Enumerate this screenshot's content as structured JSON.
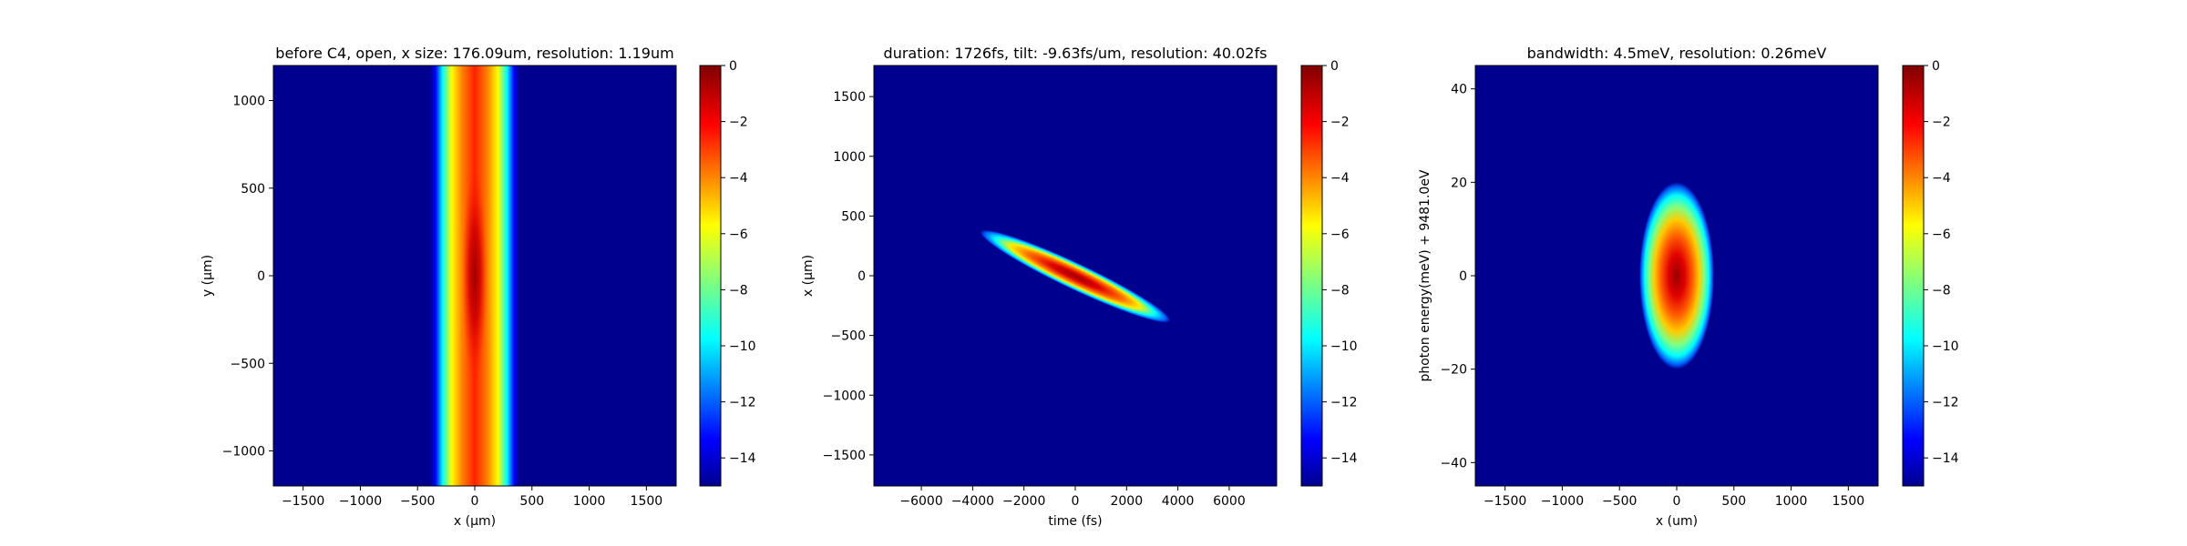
{
  "chart_data": [
    {
      "type": "heatmap",
      "title": "before C4, open, x size: 176.09um, resolution: 1.19um",
      "xlabel": "x (μm)",
      "ylabel": "y (μm)",
      "xlim": [
        -1760,
        1760
      ],
      "ylim": [
        -1200,
        1200
      ],
      "x_ticks": [
        -1500,
        -1000,
        -500,
        0,
        500,
        1000,
        1500
      ],
      "y_ticks": [
        -1000,
        -500,
        0,
        500,
        1000
      ],
      "x_tick_labels": [
        "−1500",
        "−1000",
        "−500",
        "0",
        "500",
        "1000",
        "1500"
      ],
      "y_tick_labels": [
        "−1000",
        "−500",
        "0",
        "500",
        "1000"
      ],
      "colormap": "jet",
      "clim": [
        -15,
        0
      ],
      "colorbar_ticks": [
        0,
        -2,
        -4,
        -6,
        -8,
        -10,
        -12,
        -14
      ],
      "colorbar_tick_labels": [
        "0",
        "−2",
        "−4",
        "−6",
        "−8",
        "−10",
        "−12",
        "−14"
      ],
      "feature": {
        "shape": "vertical-beam",
        "center_x": 0,
        "center_y": 0,
        "half_width_x_at_floor": 330,
        "edge_half_width_x_at_floor": 390,
        "core_half_height_y": 600
      }
    },
    {
      "type": "heatmap",
      "title": "duration: 1726fs, tilt: -9.63fs/um, resolution: 40.02fs",
      "xlabel": "time (fs)",
      "ylabel": "x (μm)",
      "xlim": [
        -7850,
        7850
      ],
      "ylim": [
        -1760,
        1760
      ],
      "x_ticks": [
        -6000,
        -4000,
        -2000,
        0,
        2000,
        4000,
        6000
      ],
      "y_ticks": [
        -1500,
        -1000,
        -500,
        0,
        500,
        1000,
        1500
      ],
      "x_tick_labels": [
        "−6000",
        "−4000",
        "−2000",
        "0",
        "2000",
        "4000",
        "6000"
      ],
      "y_tick_labels": [
        "−1500",
        "−1000",
        "−500",
        "0",
        "500",
        "1000",
        "1500"
      ],
      "colormap": "jet",
      "clim": [
        -15,
        0
      ],
      "colorbar_ticks": [
        0,
        -2,
        -4,
        -6,
        -8,
        -10,
        -12,
        -14
      ],
      "colorbar_tick_labels": [
        "0",
        "−2",
        "−4",
        "−6",
        "−8",
        "−10",
        "−12",
        "−14"
      ],
      "feature": {
        "shape": "tilted-ellipse",
        "center_x": 0,
        "center_y": 0,
        "tilt_fs_per_um": -9.63,
        "endpoint_start": [
          -3700,
          370
        ],
        "endpoint_end": [
          3700,
          -380
        ],
        "half_thickness_x_at_floor": 22
      }
    },
    {
      "type": "heatmap",
      "title": "bandwidth: 4.5meV, resolution: 0.26meV",
      "xlabel": "x (um)",
      "ylabel": "photon energy(meV) + 9481.0eV",
      "xlim": [
        -1760,
        1760
      ],
      "ylim": [
        -45,
        45
      ],
      "x_ticks": [
        -1500,
        -1000,
        -500,
        0,
        500,
        1000,
        1500
      ],
      "y_ticks": [
        -40,
        -20,
        0,
        20,
        40
      ],
      "x_tick_labels": [
        "−1500",
        "−1000",
        "−500",
        "0",
        "500",
        "1000",
        "1500"
      ],
      "y_tick_labels": [
        "−40",
        "−20",
        "0",
        "20",
        "40"
      ],
      "colormap": "jet",
      "clim": [
        -15,
        0
      ],
      "colorbar_ticks": [
        0,
        -2,
        -4,
        -6,
        -8,
        -10,
        -12,
        -14
      ],
      "colorbar_tick_labels": [
        "0",
        "−2",
        "−4",
        "−6",
        "−8",
        "−10",
        "−12",
        "−14"
      ],
      "feature": {
        "shape": "ellipse",
        "center_x": 0,
        "center_y": 0,
        "half_width_x_at_floor": 390,
        "half_height_y_at_floor": 20
      }
    }
  ]
}
